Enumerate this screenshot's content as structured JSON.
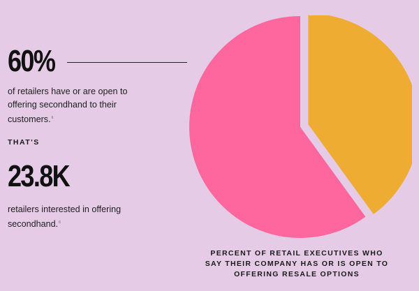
{
  "stat1": {
    "value": "60%",
    "description": "of retailers have or are open to offering secondhand to their customers.",
    "footnote": "6"
  },
  "connector": "THAT'S",
  "stat2": {
    "value": "23.8K",
    "description": "retailers interested in offering secondhand.",
    "footnote": "6"
  },
  "chart_data": {
    "type": "pie",
    "caption": "PERCENT OF RETAIL EXECUTIVES WHO SAY THEIR COMPANY HAS OR IS OPEN TO OFFERING RESALE OPTIONS",
    "slices": [
      {
        "value": 40,
        "color": "#eeac33",
        "exploded": true
      },
      {
        "value": 60,
        "color": "#fe679d",
        "exploded": false
      }
    ],
    "start_angle_deg": 0,
    "direction": "clockwise",
    "background": "#e5cbe5"
  }
}
